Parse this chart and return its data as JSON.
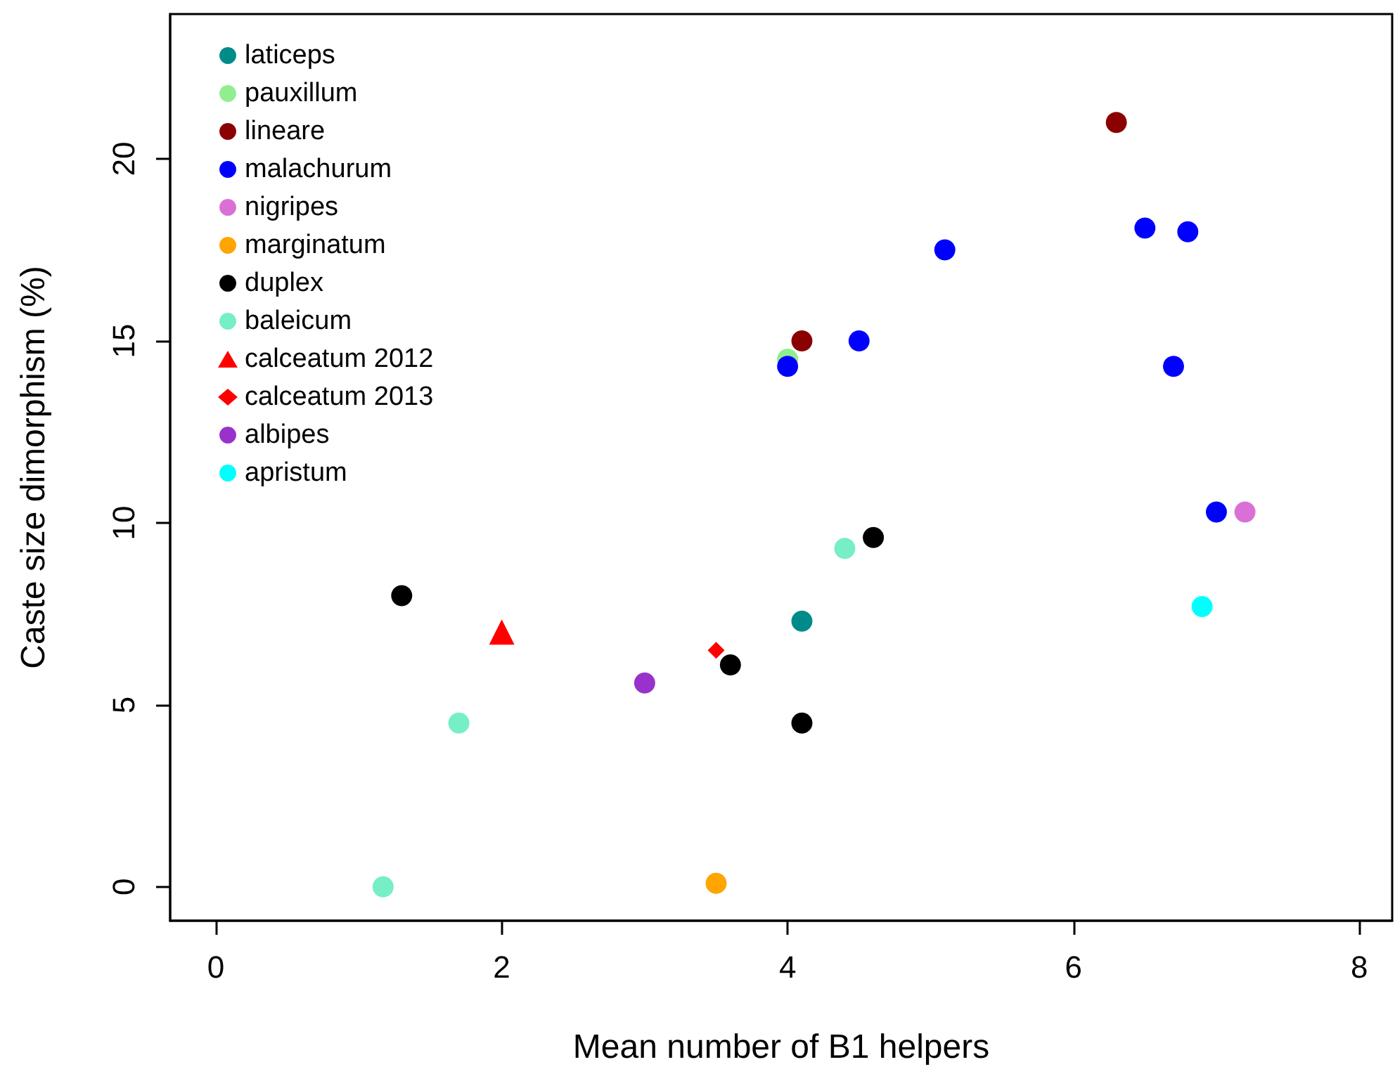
{
  "chart_data": {
    "type": "scatter",
    "xlabel": "Mean number of B1 helpers",
    "ylabel": "Caste size dimorphism (%)",
    "xlim": [
      -0.32,
      8.23
    ],
    "ylim": [
      -0.93,
      23.98
    ],
    "xticks": [
      0,
      2,
      4,
      6,
      8
    ],
    "yticks": [
      0,
      5,
      10,
      15,
      20
    ],
    "grid": false,
    "legend": "top left",
    "marker": "circle",
    "series": [
      {
        "name": "laticeps",
        "color": "#008b8b",
        "x": [
          4.1
        ],
        "values": [
          7.3
        ]
      },
      {
        "name": "pauxillum",
        "color": "#90ee90",
        "x": [
          4.0
        ],
        "values": [
          14.5
        ]
      },
      {
        "name": "lineare",
        "color": "#8b0000",
        "x": [
          4.1,
          6.3
        ],
        "values": [
          15.0,
          21.0
        ]
      },
      {
        "name": "malachurum",
        "color": "#0000ff",
        "x": [
          4.0,
          4.5,
          5.1,
          6.5,
          6.8,
          6.7,
          7.0
        ],
        "values": [
          14.3,
          15.0,
          17.5,
          18.1,
          18.0,
          14.3,
          10.3
        ]
      },
      {
        "name": "nigripes",
        "color": "#da70d6",
        "x": [
          7.2
        ],
        "values": [
          10.3
        ]
      },
      {
        "name": "marginatum",
        "color": "#ffa500",
        "x": [
          3.5
        ],
        "values": [
          0.1
        ]
      },
      {
        "name": "duplex",
        "color": "#000000",
        "x": [
          1.3,
          3.6,
          4.1,
          4.6
        ],
        "values": [
          8.0,
          6.1,
          4.5,
          9.6
        ]
      },
      {
        "name": "baleicum",
        "color": "#76eec6",
        "x": [
          1.17,
          1.7,
          4.4
        ],
        "values": [
          0.0,
          4.5,
          9.3
        ]
      },
      {
        "name": "calceatum 2012",
        "color": "#ff0000",
        "marker": "triangle",
        "x": [
          2.0
        ],
        "values": [
          7.0
        ]
      },
      {
        "name": "calceatum 2013",
        "color": "#ff0000",
        "marker": "diamond",
        "x": [
          3.5
        ],
        "values": [
          6.5
        ]
      },
      {
        "name": "albipes",
        "color": "#9932cc",
        "x": [
          3.0
        ],
        "values": [
          5.6
        ]
      },
      {
        "name": "apristum",
        "color": "#00ffff",
        "x": [
          6.9
        ],
        "values": [
          7.7
        ]
      }
    ]
  }
}
